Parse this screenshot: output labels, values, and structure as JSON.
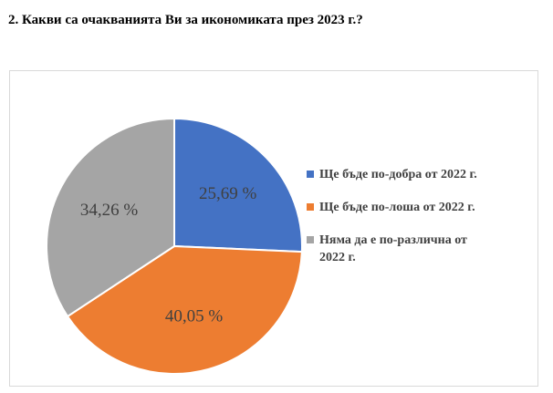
{
  "heading": "2. Какви са очакванията Ви за икономиката през 2023 г.?",
  "chart_data": {
    "type": "pie",
    "title": "",
    "categories": [
      "Ще бъде по-добра от 2022 г.",
      "Ще бъде по-лоша от 2022 г.",
      "Няма да е по-различна от 2022 г."
    ],
    "values": [
      25.69,
      40.05,
      34.26
    ],
    "data_labels": [
      "25,69 %",
      "40,05 %",
      "34,26 %"
    ],
    "colors": [
      "#4472c4",
      "#ed7d31",
      "#a5a5a5"
    ],
    "legend_position": "right"
  }
}
